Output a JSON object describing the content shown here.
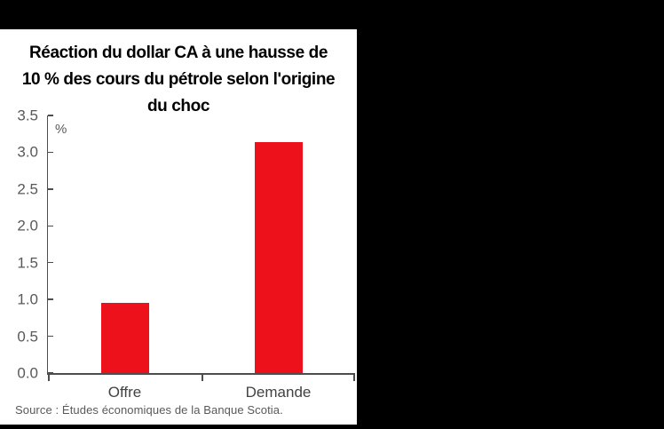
{
  "frame": {
    "canvas_bg": "#000000",
    "panel_bg": "#ffffff"
  },
  "chart": {
    "title_lines": [
      "Réaction du dollar CA à une hausse de",
      "10 % des cours du pétrole selon l'origine",
      "du choc"
    ]
  },
  "chart_data": {
    "type": "bar",
    "title": "Réaction du dollar CA à une hausse de 10 % des cours du pétrole selon l'origine du choc",
    "unit_label": "%",
    "categories": [
      "Offre",
      "Demande"
    ],
    "values": [
      0.95,
      3.14
    ],
    "ylim": [
      0,
      3.5
    ],
    "ytick_labels": [
      "0.0",
      "0.5",
      "1.0",
      "1.5",
      "2.0",
      "2.5",
      "3.0",
      "3.5"
    ],
    "xlabel": "",
    "ylabel": "%",
    "grid": false,
    "legend_position": "none",
    "bar_color": "#ec111a",
    "axis_color": "#4d4d4f",
    "tick_label_color": "#58595b"
  },
  "source": {
    "text": "Source : Études économiques de la Banque Scotia."
  }
}
